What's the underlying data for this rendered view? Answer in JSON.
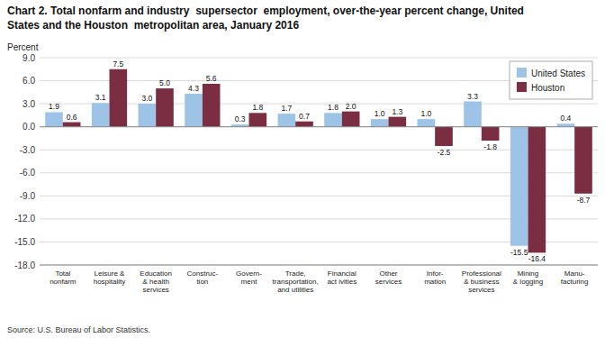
{
  "chart_data": {
    "type": "bar",
    "title": "Chart 2. Total nonfarm and industry  supersector  employment, over-the-year percent change, United\nStates and the Houston  metropolitan area, January 2016",
    "ylabel": "Percent",
    "source": "Source: U.S. Bureau of Labor Statistics.",
    "categories": [
      "Total\nnonfarm",
      "Leisure &\nhospitality",
      "Education\n& health\nservices",
      "Construc-\ntion",
      "Govern-\nment",
      "Trade,\ntransportation,\nand utilities",
      "Financial\nact ivities",
      "Other\nservices",
      "Infor-\nmation",
      "Professional\n& business\nservices",
      "Mining\n& logging",
      "Manu-\nfacturing"
    ],
    "series": [
      {
        "name": "United States",
        "color": "#9DC3E6",
        "values": [
          1.9,
          3.1,
          3.0,
          4.3,
          0.3,
          1.7,
          1.8,
          1.0,
          1.0,
          3.3,
          -15.5,
          0.4
        ],
        "value_labels": [
          "1.9",
          "3.1",
          "3.0",
          "4.3",
          "0.3",
          "1.7",
          "1.8",
          "1.0",
          "1.0",
          "3.3",
          "-15.5",
          "0.4"
        ]
      },
      {
        "name": "Houston",
        "color": "#7B2D42",
        "values": [
          0.6,
          7.5,
          5.0,
          5.6,
          1.8,
          0.7,
          2.0,
          1.3,
          -2.5,
          -1.8,
          -16.4,
          -8.7
        ],
        "value_labels": [
          "0.6",
          "7.5",
          "5.0",
          "5.6",
          "1.8",
          "0.7",
          "2.0",
          "1.3",
          "-2.5",
          "-1.8",
          "-16.4",
          "-8.7"
        ]
      }
    ],
    "ylim": [
      -18,
      9
    ],
    "yticks": [
      {
        "value": -18,
        "label": "-18.0"
      },
      {
        "value": -15,
        "label": "-15.0"
      },
      {
        "value": -12,
        "label": "-12.0"
      },
      {
        "value": -9,
        "label": "-9.0"
      },
      {
        "value": -6,
        "label": "-6.0"
      },
      {
        "value": -3,
        "label": "-3.0"
      },
      {
        "value": 0,
        "label": "0.0"
      },
      {
        "value": 3,
        "label": "3.0"
      },
      {
        "value": 6,
        "label": "6.0"
      },
      {
        "value": 9,
        "label": "9.0"
      }
    ],
    "grid": true,
    "legend": "upper right",
    "data_labels": true
  }
}
